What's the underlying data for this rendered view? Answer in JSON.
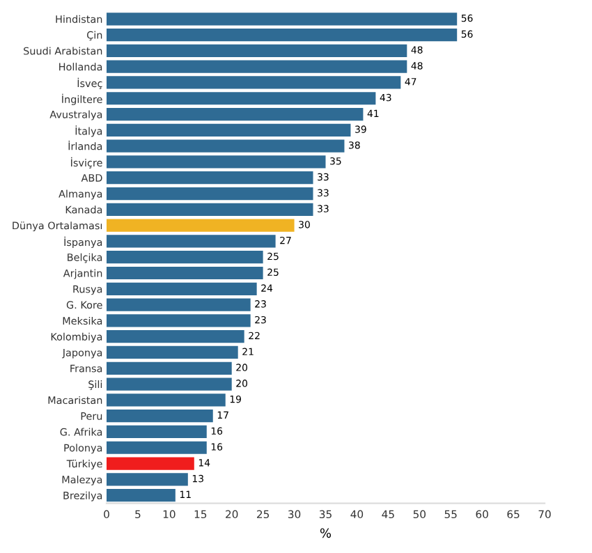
{
  "chart_data": {
    "type": "bar",
    "orientation": "horizontal",
    "xlabel": "%",
    "categories": [
      "Hindistan",
      "Çin",
      "Suudi Arabistan",
      "Hollanda",
      "İsveç",
      "İngiltere",
      "Avustralya",
      "İtalya",
      "İrlanda",
      "İsviçre",
      "ABD",
      "Almanya",
      "Kanada",
      "Dünya Ortalaması",
      "İspanya",
      "Belçika",
      "Arjantin",
      "Rusya",
      "G. Kore",
      "Meksika",
      "Kolombiya",
      "Japonya",
      "Fransa",
      "Şili",
      "Macaristan",
      "Peru",
      "G. Afrika",
      "Polonya",
      "Türkiye",
      "Malezya",
      "Brezilya"
    ],
    "values": [
      56,
      56,
      48,
      48,
      47,
      43,
      41,
      39,
      38,
      35,
      33,
      33,
      33,
      30,
      27,
      25,
      25,
      24,
      23,
      23,
      22,
      21,
      20,
      20,
      19,
      17,
      16,
      16,
      14,
      13,
      11
    ],
    "colors": [
      "#2f6b94",
      "#2f6b94",
      "#2f6b94",
      "#2f6b94",
      "#2f6b94",
      "#2f6b94",
      "#2f6b94",
      "#2f6b94",
      "#2f6b94",
      "#2f6b94",
      "#2f6b94",
      "#2f6b94",
      "#2f6b94",
      "#f0b323",
      "#2f6b94",
      "#2f6b94",
      "#2f6b94",
      "#2f6b94",
      "#2f6b94",
      "#2f6b94",
      "#2f6b94",
      "#2f6b94",
      "#2f6b94",
      "#2f6b94",
      "#2f6b94",
      "#2f6b94",
      "#2f6b94",
      "#2f6b94",
      "#f01d1d",
      "#2f6b94",
      "#2f6b94"
    ],
    "xlim": [
      0,
      70
    ],
    "xticks": [
      0,
      5,
      10,
      15,
      20,
      25,
      30,
      35,
      40,
      45,
      50,
      55,
      60,
      65,
      70
    ],
    "data_labels": true,
    "grid": false
  }
}
